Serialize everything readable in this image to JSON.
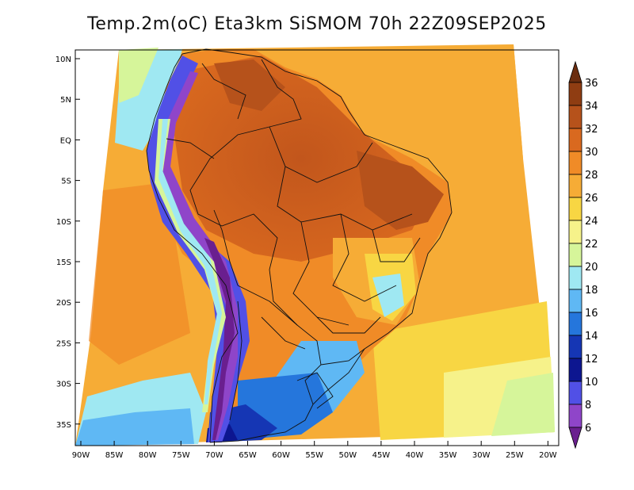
{
  "title": "Temp.2m(oC) Eta3km SiSMOM 70h 22Z09SEP2025",
  "lat_ticks": [
    "10N",
    "5N",
    "EQ",
    "5S",
    "10S",
    "15S",
    "20S",
    "25S",
    "30S",
    "35S"
  ],
  "lon_ticks": [
    "90W",
    "85W",
    "80W",
    "75W",
    "70W",
    "65W",
    "60W",
    "55W",
    "50W",
    "45W",
    "40W",
    "35W",
    "30W",
    "25W",
    "20W"
  ],
  "colorbar": {
    "labels": [
      "36",
      "34",
      "32",
      "30",
      "28",
      "26",
      "24",
      "22",
      "20",
      "18",
      "16",
      "14",
      "12",
      "10",
      "8",
      "6"
    ],
    "colors": [
      "#6b2d0f",
      "#8f3d12",
      "#b6521b",
      "#d9691f",
      "#f08b27",
      "#f6ac36",
      "#f8d643",
      "#f6f28a",
      "#d6f59a",
      "#9fe8f2",
      "#5fb8f4",
      "#2576dc",
      "#1536b4",
      "#0d1690",
      "#5150e6",
      "#8f45c9",
      "#6a1f8f"
    ]
  }
}
